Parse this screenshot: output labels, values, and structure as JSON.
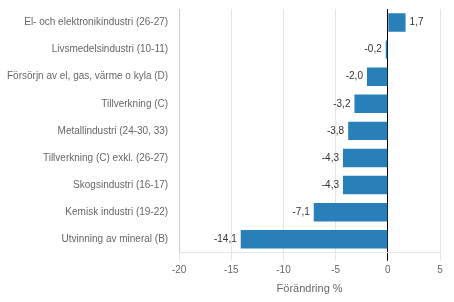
{
  "chart_data": {
    "type": "bar",
    "orientation": "horizontal",
    "categories": [
      "Utvinning av mineral (B)",
      "Kemisk industri (19-22)",
      "Skogsindustri (16-17)",
      "Tillverkning (C) exkl. (26-27)",
      "Metallindustri (24-30, 33)",
      "Tillverkning (C)",
      "Försörjn av el, gas, värme o kyla (D)",
      "Livsmedelsindustri (10-11)",
      "El- och elektronikindustri (26-27)"
    ],
    "values": [
      -14.1,
      -7.1,
      -4.3,
      -4.3,
      -3.8,
      -3.2,
      -2.0,
      -0.2,
      1.7
    ],
    "value_labels": [
      "-14,1",
      "-7,1",
      "-4,3",
      "-4,3",
      "-3,8",
      "-3,2",
      "-2,0",
      "-0,2",
      "1,7"
    ],
    "data_labels": true,
    "color": "#2980b9",
    "xlabel": "Förändring %",
    "xlim": [
      -20,
      5
    ],
    "xticks": [
      -20,
      -15,
      -10,
      -5,
      0,
      5
    ],
    "grid": true
  }
}
